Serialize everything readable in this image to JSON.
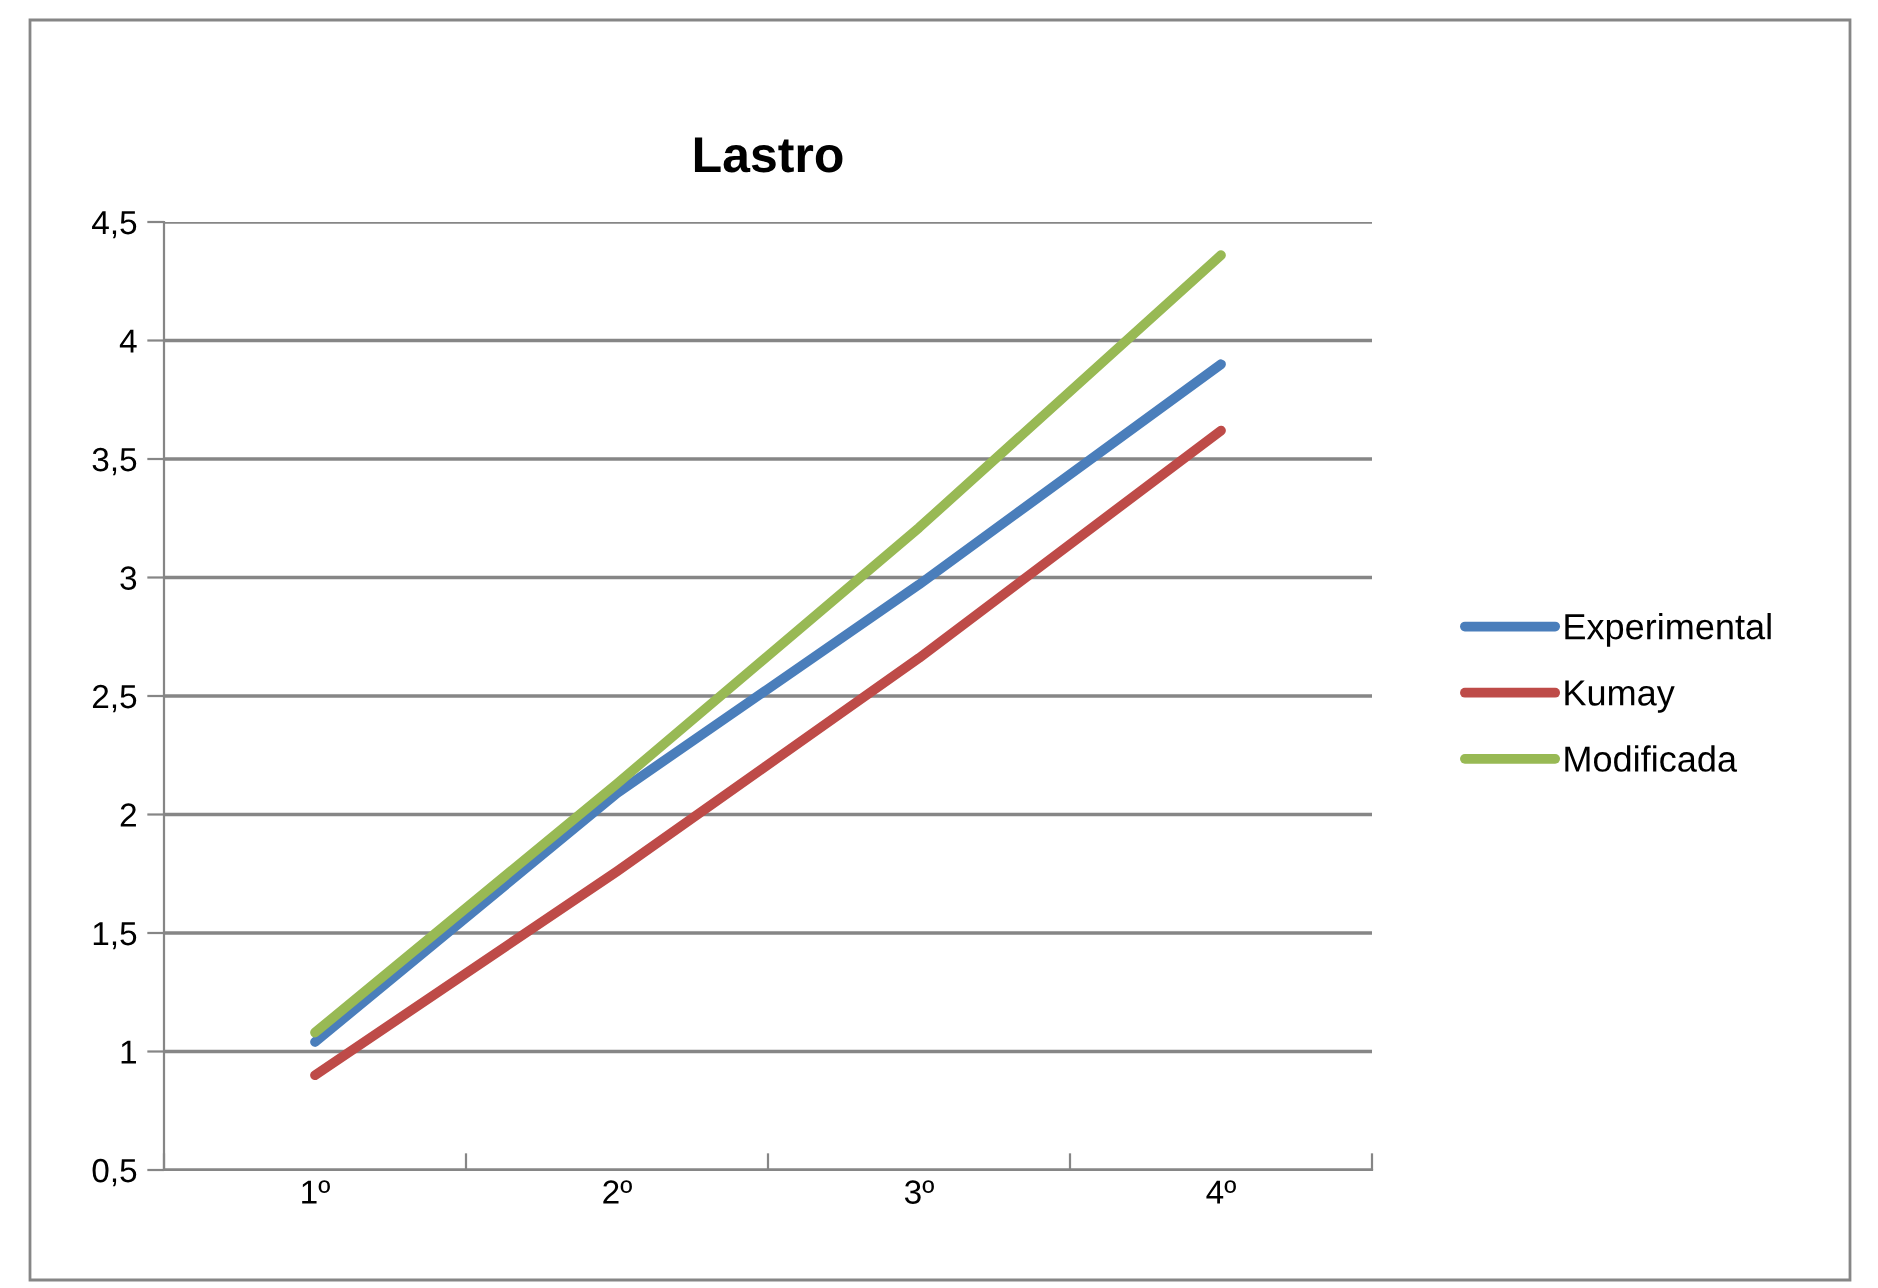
{
  "chart_data": {
    "type": "line",
    "title": "Lastro",
    "categories": [
      "1º",
      "2º",
      "3º",
      "4º"
    ],
    "series": [
      {
        "name": "Experimental",
        "color": "#4a7ebb",
        "values": [
          1.04,
          2.09,
          2.97,
          3.9
        ]
      },
      {
        "name": "Kumay",
        "color": "#be4b48",
        "values": [
          0.9,
          1.76,
          2.66,
          3.62
        ]
      },
      {
        "name": "Modificada",
        "color": "#98b954",
        "values": [
          1.08,
          2.13,
          3.21,
          4.36
        ]
      }
    ],
    "ylim": [
      0.5,
      4.5
    ],
    "yticks": [
      {
        "value": 0.5,
        "label": "0,5"
      },
      1,
      {
        "value": 1.5,
        "label": "1,5"
      },
      2,
      {
        "value": 2.5,
        "label": "2,5"
      },
      3,
      {
        "value": 3.5,
        "label": "3,5"
      },
      4,
      {
        "value": 4.5,
        "label": "4,5"
      }
    ],
    "grid": "y",
    "legend": "right",
    "marker": "none",
    "line_style": "solid"
  }
}
